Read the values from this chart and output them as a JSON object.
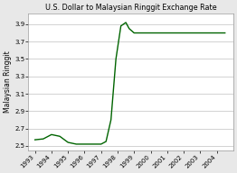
{
  "title": "U.S. Dollar to Malaysian Ringgit Exchange Rate",
  "ylabel": "Malaysian Ringgit",
  "line_color": "#006400",
  "line_width": 1.0,
  "background_color": "#e8e8e8",
  "plot_bg_color": "#ffffff",
  "ylim": [
    2.45,
    4.02
  ],
  "yticks": [
    2.5,
    2.7,
    2.9,
    3.1,
    3.3,
    3.5,
    3.7,
    3.9
  ],
  "years": [
    1993.0,
    1993.5,
    1994.0,
    1994.5,
    1995.0,
    1995.5,
    1996.0,
    1996.5,
    1997.0,
    1997.3,
    1997.6,
    1997.9,
    1998.2,
    1998.5,
    1998.7,
    1999.0,
    1999.5,
    2000.0,
    2000.5,
    2001.0,
    2001.5,
    2002.0,
    2002.5,
    2003.0,
    2003.5,
    2004.0,
    2004.5
  ],
  "values": [
    2.57,
    2.58,
    2.63,
    2.61,
    2.54,
    2.52,
    2.52,
    2.52,
    2.52,
    2.55,
    2.8,
    3.5,
    3.88,
    3.92,
    3.85,
    3.8,
    3.8,
    3.8,
    3.8,
    3.8,
    3.8,
    3.8,
    3.8,
    3.8,
    3.8,
    3.8,
    3.8
  ],
  "xtick_positions": [
    1993,
    1994,
    1995,
    1996,
    1997,
    1998,
    1999,
    2000,
    2001,
    2002,
    2003,
    2004
  ],
  "xtick_labels": [
    "1993",
    "1994",
    "1995",
    "1996",
    "1997",
    "1998",
    "1999",
    "2000",
    "2001",
    "2002",
    "2003",
    "2004"
  ],
  "title_fontsize": 5.8,
  "axis_fontsize": 5.0,
  "ylabel_fontsize": 5.5,
  "xlim": [
    1992.6,
    2005.0
  ]
}
